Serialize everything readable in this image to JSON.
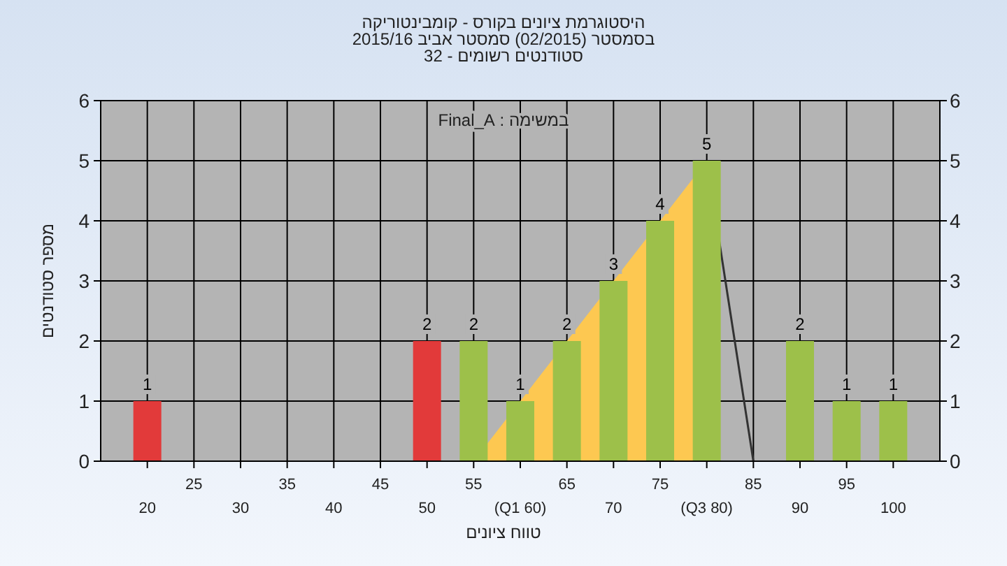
{
  "chart_data": {
    "type": "bar",
    "title": "היסטוגרמת ציונים בקורס - קומבינטוריקה",
    "subtitle": "בסמסטר (02/2015) סמסטר אביב 2015/16\nסטודנטים רשומים - 32",
    "xlabel": "טווח ציונים",
    "ylabel": "מספר סטודנטים",
    "annotations": [
      "במשימה : Final_A"
    ],
    "categories": [
      "20",
      "25",
      "30",
      "35",
      "40",
      "45",
      "50",
      "55",
      "(Q1 60)",
      "65",
      "70",
      "75",
      "(Q3 80)",
      "85",
      "90",
      "95",
      "100"
    ],
    "series": [
      {
        "type": "area",
        "color": "#fdc851",
        "values": [
          null,
          null,
          null,
          null,
          null,
          null,
          null,
          0,
          1,
          2,
          3,
          4,
          5,
          null,
          null,
          null,
          null
        ]
      },
      {
        "type": "line",
        "color": "#333333",
        "values": [
          null,
          null,
          null,
          null,
          null,
          null,
          null,
          null,
          null,
          null,
          null,
          null,
          5,
          0,
          null,
          null,
          null
        ]
      },
      {
        "values": [
          1,
          0,
          0,
          0,
          0,
          0,
          2,
          2,
          1,
          2,
          3,
          4,
          5,
          0,
          2,
          1,
          1
        ],
        "colors": [
          "#e23a3a",
          null,
          null,
          null,
          null,
          null,
          "#e23a3a",
          "#9dc04a",
          "#9dc04a",
          "#9dc04a",
          "#9dc04a",
          "#9dc04a",
          "#9dc04a",
          null,
          "#9dc04a",
          "#9dc04a",
          "#9dc04a"
        ],
        "value_labels": [
          "1",
          null,
          null,
          null,
          null,
          null,
          "2",
          "2",
          "1",
          "2",
          "3",
          "4",
          "5",
          null,
          "2",
          "1",
          "1"
        ]
      }
    ],
    "ylim": [
      0,
      6
    ],
    "yticks": [
      0,
      1,
      2,
      3,
      4,
      5,
      6
    ],
    "y2lim": [
      0,
      6
    ],
    "y2ticks": [
      0,
      1,
      2,
      3,
      4,
      5,
      6
    ],
    "grid": true
  }
}
